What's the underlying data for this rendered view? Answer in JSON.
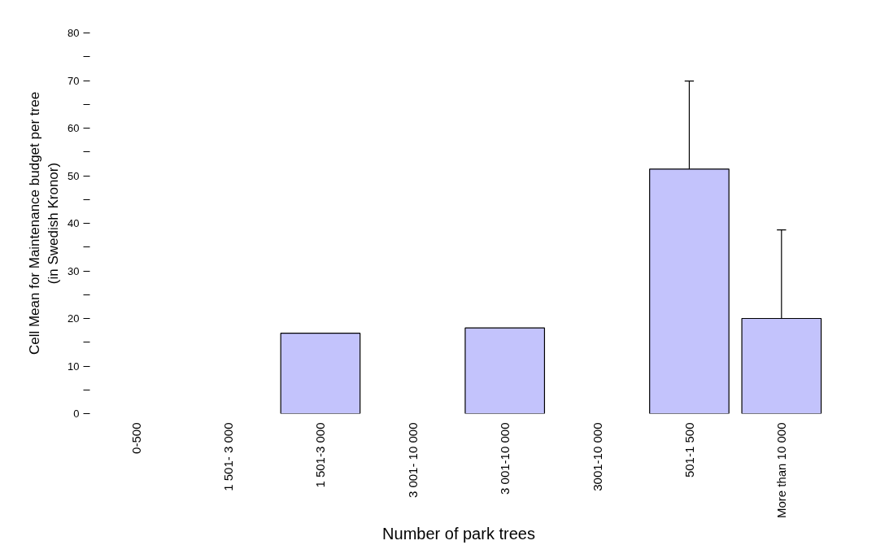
{
  "chart_data": {
    "type": "bar",
    "xlabel": "Number of park trees",
    "ylabel": "Cell Mean for Maintenance budget per tree\n(in Swedish Kronor)",
    "categories": [
      "0-500",
      "1 501- 3 000",
      "1 501-3 000",
      "3 001- 10 000",
      "3 001-10 000",
      "3001-10 000",
      "501-1 500",
      "More than 10 000"
    ],
    "values": [
      null,
      null,
      16.9,
      null,
      18.0,
      null,
      51.4,
      20.0
    ],
    "errors": [
      null,
      null,
      null,
      null,
      null,
      null,
      [
        51.4,
        69.9
      ],
      [
        20.0,
        38.6
      ]
    ],
    "color": "#c3c3fc",
    "ylim": [
      0,
      80
    ],
    "yticks": [
      0,
      {
        "value": 5,
        "label": null
      },
      10,
      {
        "value": 15,
        "label": null
      },
      20,
      {
        "value": 25,
        "label": null
      },
      30,
      {
        "value": 35,
        "label": null
      },
      40,
      {
        "value": 45,
        "label": null
      },
      50,
      {
        "value": 55,
        "label": null
      },
      60,
      {
        "value": 65,
        "label": null
      },
      70,
      {
        "value": 75,
        "label": null
      },
      80
    ],
    "grid": false
  }
}
